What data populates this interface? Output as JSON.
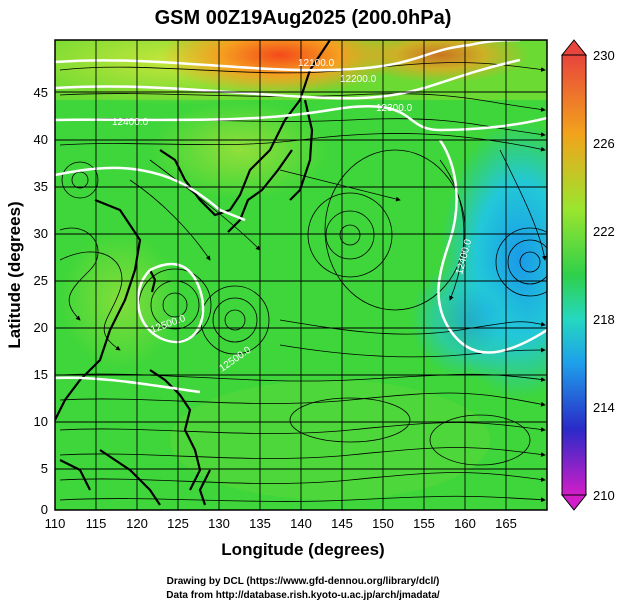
{
  "title": "GSM 00Z19Aug2025 (200.0hPa)",
  "x_axis_label": "Longitude (degrees)",
  "y_axis_label": "Latitude  (degrees)",
  "credit_line_1": "Drawing by DCL (https://www.gfd-dennou.org/library/dcl/)",
  "credit_line_2": "Data from http://database.rish.kyoto-u.ac.jp/arch/jmadata/",
  "colors": {
    "warm": "#f05a28",
    "land_outline": "#000000",
    "contour": "#ffffff"
  },
  "map": {
    "lon_range": [
      110,
      170
    ],
    "lat_range": [
      0,
      50
    ],
    "grid": true,
    "field": "temperature / streamlines at 200hPa"
  },
  "x_ticks": [
    "110",
    "115",
    "120",
    "125",
    "130",
    "135",
    "140",
    "145",
    "150",
    "155",
    "160",
    "165"
  ],
  "y_ticks": [
    "0",
    "5",
    "10",
    "15",
    "20",
    "25",
    "30",
    "35",
    "40",
    "45"
  ],
  "colorbar": {
    "ticks": [
      "230",
      "226",
      "222",
      "218",
      "214",
      "210"
    ],
    "min": 210,
    "max": 230
  },
  "contour_labels": [
    "12100.0",
    "12200.0",
    "12300.0",
    "12400.0",
    "12400.0",
    "12500.0",
    "12500.0"
  ]
}
